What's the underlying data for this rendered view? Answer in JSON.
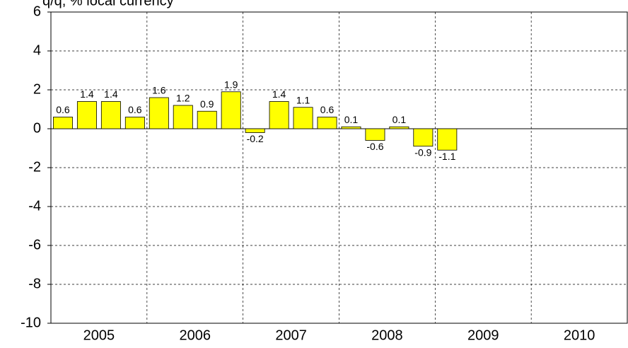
{
  "chart_data": {
    "type": "bar",
    "title": "q/q, % local currency",
    "categories": [
      "2005",
      "2006",
      "2007",
      "2008",
      "2009",
      "2010"
    ],
    "values": [
      [
        0.6,
        1.4,
        1.4,
        0.6
      ],
      [
        1.6,
        1.2,
        0.9,
        1.9
      ],
      [
        -0.2,
        1.4,
        1.1,
        0.6
      ],
      [
        0.1,
        -0.6,
        0.1,
        -0.9
      ],
      [
        -1.1,
        null,
        null,
        null
      ],
      [
        null,
        null,
        null,
        null
      ]
    ],
    "color": "#ffff00",
    "ylim": [
      -10,
      6
    ],
    "yticks": [
      -10,
      -8,
      -6,
      -4,
      -2,
      0,
      2,
      4,
      6
    ],
    "grid": true
  }
}
